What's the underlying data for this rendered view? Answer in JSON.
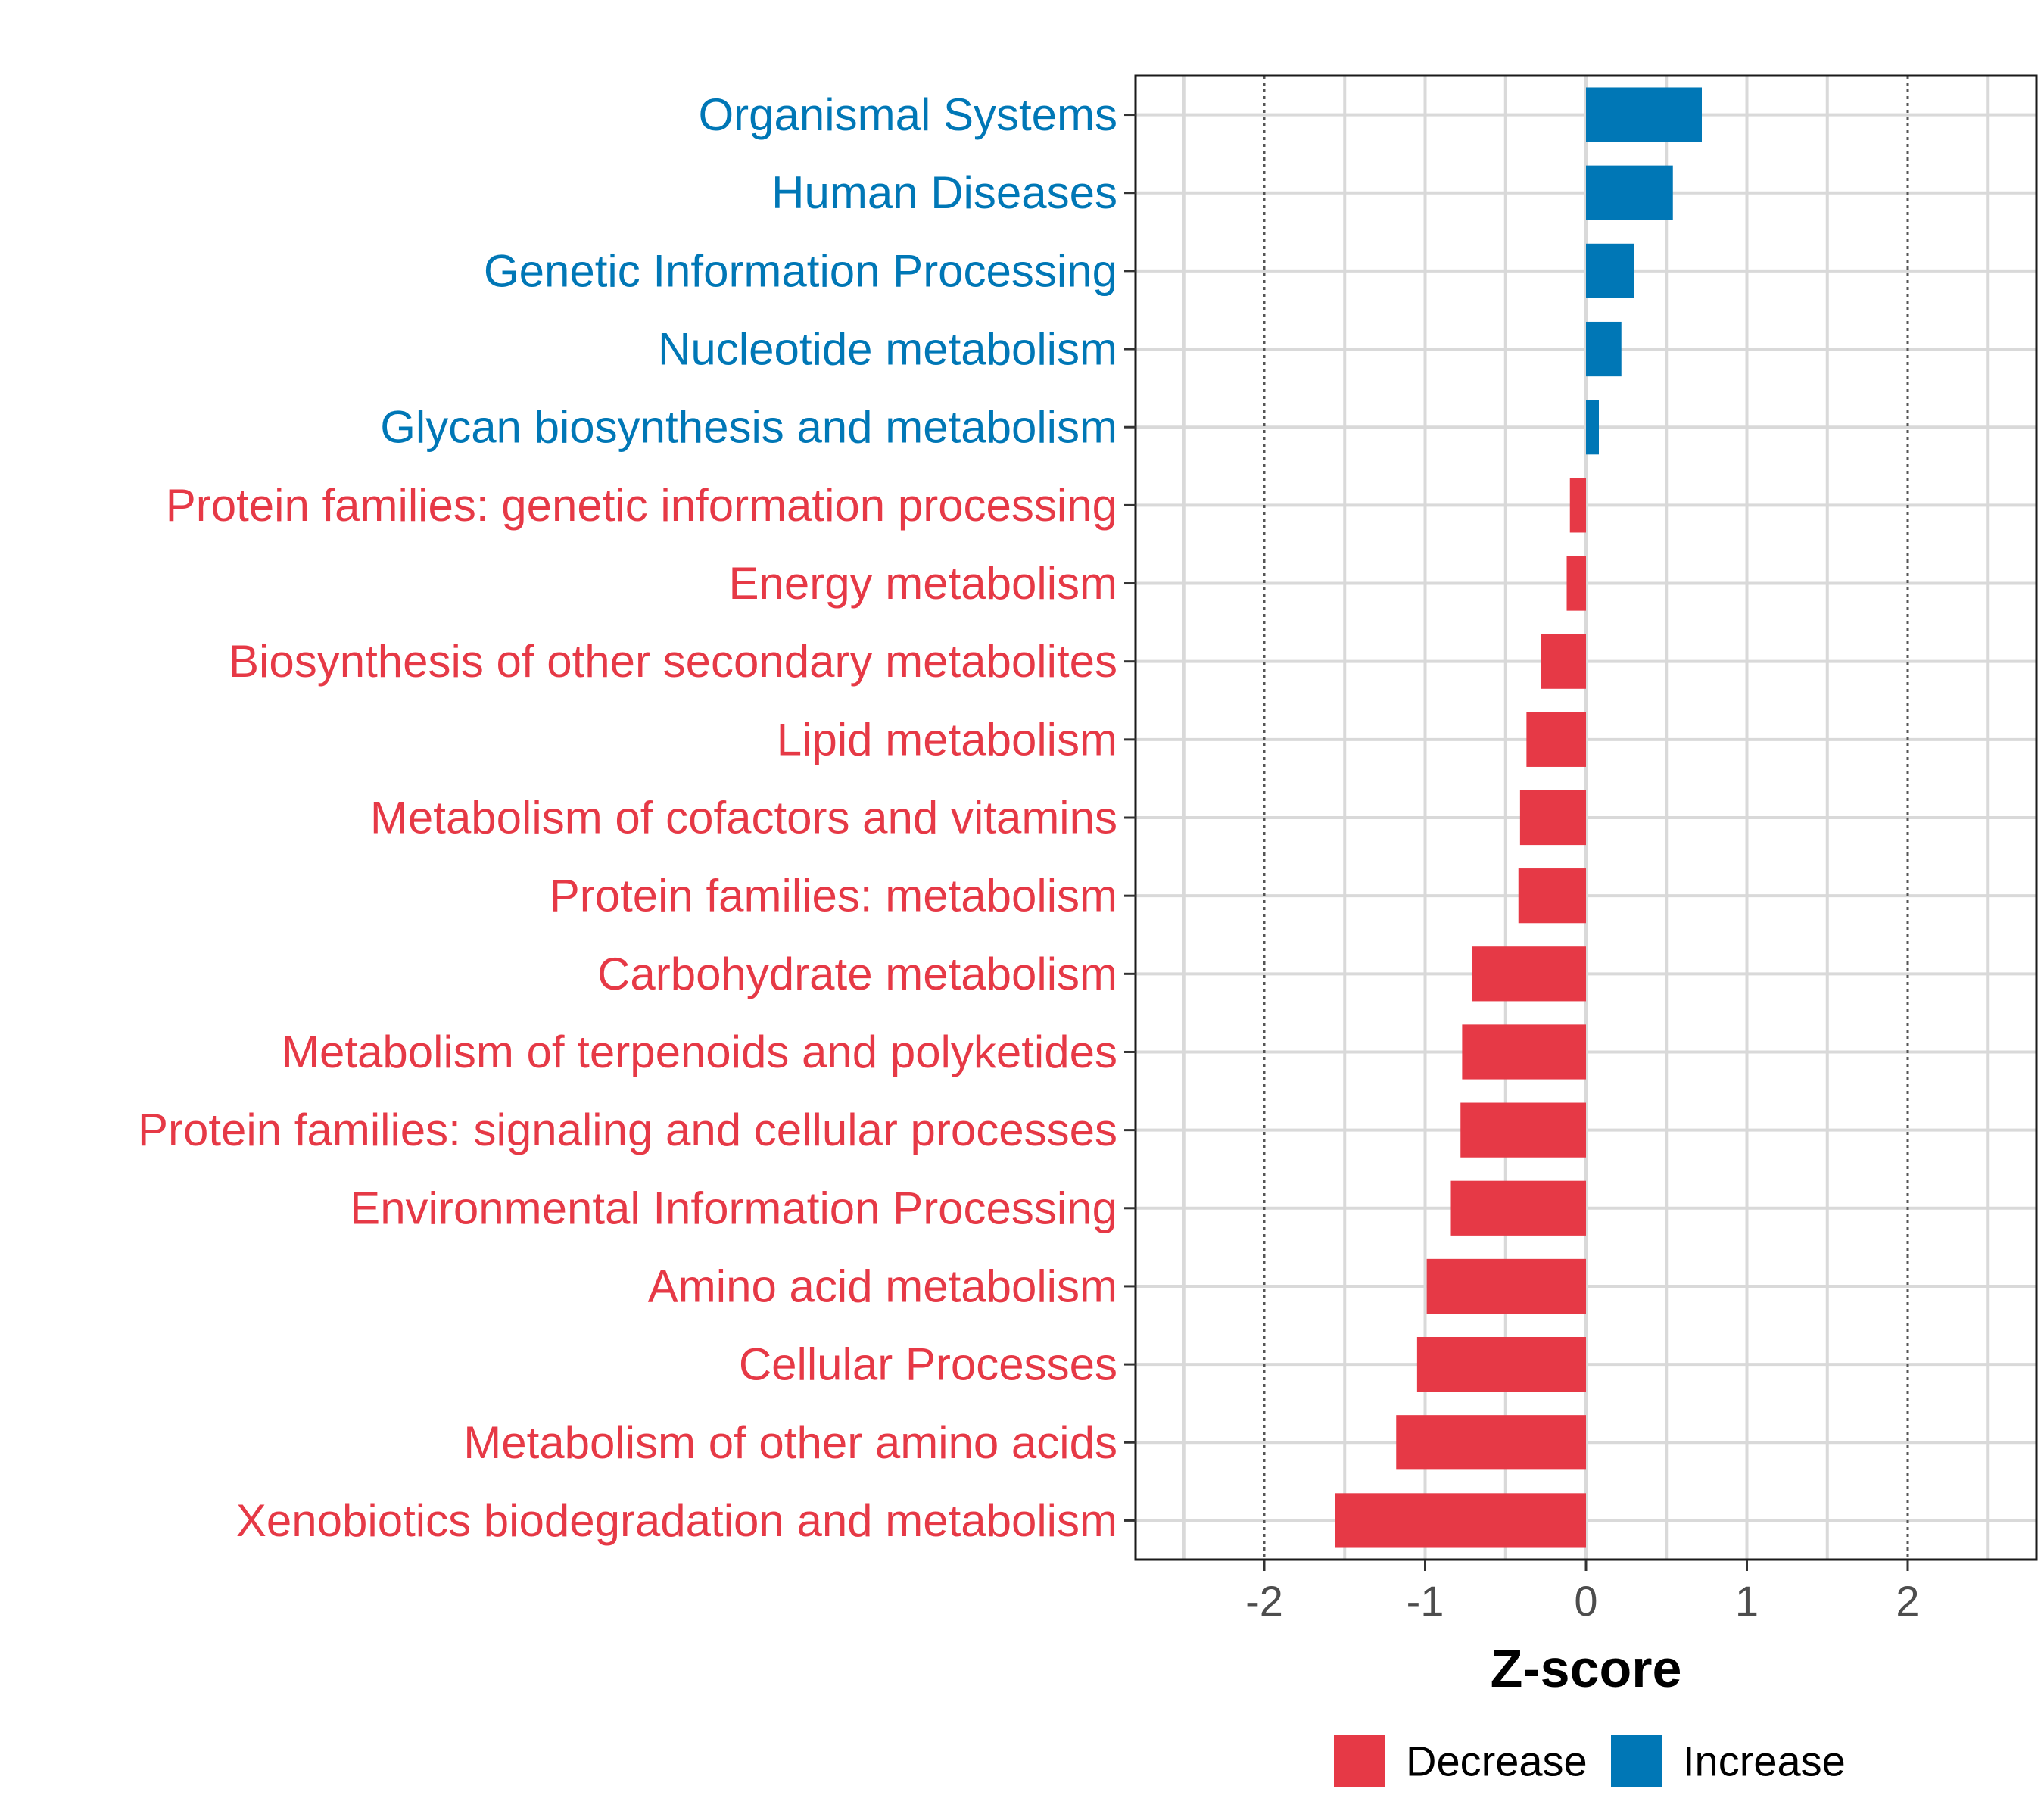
{
  "chart_data": {
    "type": "bar",
    "orientation": "horizontal",
    "title": "",
    "xlabel": "Z-score",
    "ylabel": "",
    "xlim": [
      -2.8,
      2.8
    ],
    "xticks": [
      -2,
      -1,
      0,
      1,
      2
    ],
    "xtick_labels": [
      "-2",
      "-1",
      "0",
      "1",
      "2"
    ],
    "reference_lines": [
      -2,
      2
    ],
    "grid": true,
    "legend_position": "bottom",
    "legend": [
      {
        "name": "Decrease",
        "color": "#e63946"
      },
      {
        "name": "Increase",
        "color": "#0077b6"
      }
    ],
    "categories": [
      "Organismal Systems",
      "Human Diseases",
      "Genetic Information Processing",
      "Nucleotide metabolism",
      "Glycan biosynthesis and metabolism",
      "Protein families: genetic information processing",
      "Energy metabolism",
      "Biosynthesis of other secondary metabolites",
      "Lipid metabolism",
      "Metabolism of cofactors and vitamins",
      "Protein families: metabolism",
      "Carbohydrate metabolism",
      "Metabolism of terpenoids and polyketides",
      "Protein families: signaling and cellular processes",
      "Environmental Information Processing",
      "Amino acid metabolism",
      "Cellular Processes",
      "Metabolism of other amino acids",
      "Xenobiotics biodegradation and metabolism"
    ],
    "values": [
      0.72,
      0.54,
      0.3,
      0.22,
      0.08,
      -0.1,
      -0.12,
      -0.28,
      -0.37,
      -0.41,
      -0.42,
      -0.71,
      -0.77,
      -0.78,
      -0.84,
      -0.99,
      -1.05,
      -1.18,
      -1.56
    ],
    "groups": [
      "Increase",
      "Increase",
      "Increase",
      "Increase",
      "Increase",
      "Decrease",
      "Decrease",
      "Decrease",
      "Decrease",
      "Decrease",
      "Decrease",
      "Decrease",
      "Decrease",
      "Decrease",
      "Decrease",
      "Decrease",
      "Decrease",
      "Decrease",
      "Decrease"
    ]
  }
}
